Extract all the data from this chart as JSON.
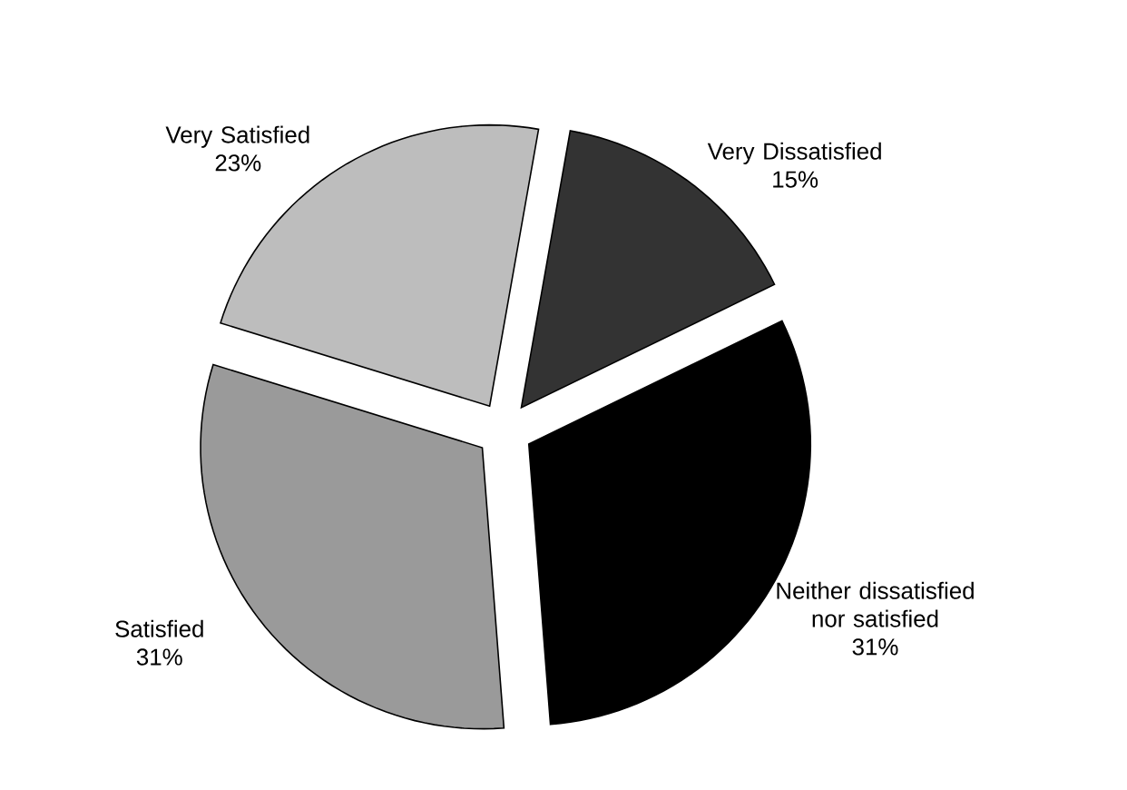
{
  "chart_data": {
    "type": "pie",
    "categories": [
      "Very Satisfied",
      "Satisfied",
      "Neither dissatisfied nor satisfied",
      "Very Dissatisfied"
    ],
    "values": [
      23,
      31,
      31,
      15
    ],
    "value_labels": [
      "23%",
      "31%",
      "31%",
      "15%"
    ],
    "colors": [
      "#bdbdbd",
      "#9a9a9a",
      "#000000",
      "#333333"
    ]
  }
}
